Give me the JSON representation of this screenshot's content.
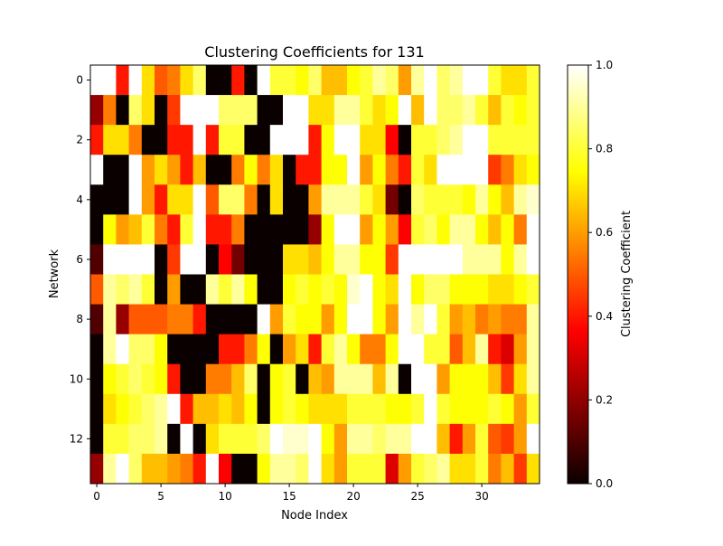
{
  "chart_data": {
    "type": "heatmap",
    "title": "Clustering Coefficients for 131",
    "xlabel": "Node Index",
    "ylabel": "Network",
    "colorbar_label": "Clustering Coefficient",
    "colormap": "hot",
    "vmin": 0.0,
    "vmax": 1.0,
    "x_ticks": [
      0,
      5,
      10,
      15,
      20,
      25,
      30
    ],
    "y_ticks": [
      0,
      2,
      4,
      6,
      8,
      10,
      12
    ],
    "colorbar_ticks": [
      "0.0",
      "0.2",
      "0.4",
      "0.6",
      "0.8",
      "1.0"
    ],
    "n_rows": 14,
    "n_cols": 35,
    "values": [
      [
        1.0,
        1.0,
        0.4,
        1.0,
        0.7,
        0.5,
        0.55,
        0.7,
        0.85,
        0.0,
        0.0,
        0.4,
        0.0,
        1.0,
        0.8,
        0.8,
        0.75,
        0.85,
        0.65,
        0.65,
        0.75,
        0.8,
        0.9,
        0.85,
        0.6,
        0.9,
        1.0,
        0.85,
        0.9,
        1.0,
        1.0,
        0.8,
        0.7,
        0.7,
        0.8
      ],
      [
        0.2,
        0.55,
        0.0,
        0.85,
        0.7,
        0.0,
        0.45,
        1.0,
        1.0,
        1.0,
        0.85,
        0.85,
        0.85,
        0.0,
        0.0,
        1.0,
        1.0,
        0.7,
        0.7,
        0.9,
        0.9,
        0.8,
        0.7,
        0.75,
        1.0,
        0.65,
        1.0,
        0.85,
        0.85,
        0.9,
        0.8,
        0.65,
        0.8,
        0.75,
        0.8
      ],
      [
        0.4,
        0.7,
        0.7,
        0.55,
        0.0,
        0.0,
        0.4,
        0.4,
        1.0,
        0.4,
        0.8,
        0.8,
        0.0,
        0.0,
        1.0,
        1.0,
        1.0,
        0.4,
        0.75,
        1.0,
        1.0,
        0.7,
        0.7,
        0.35,
        0.0,
        0.8,
        0.8,
        0.85,
        0.9,
        1.0,
        1.0,
        0.8,
        0.8,
        0.8,
        0.8
      ],
      [
        1.0,
        0.0,
        0.0,
        1.0,
        0.6,
        0.7,
        0.6,
        0.4,
        0.65,
        0.0,
        0.0,
        0.55,
        0.75,
        0.55,
        0.7,
        0.0,
        0.4,
        0.4,
        0.75,
        0.75,
        1.0,
        0.6,
        0.75,
        0.55,
        0.4,
        0.8,
        0.7,
        1.0,
        1.0,
        1.0,
        1.0,
        0.45,
        0.55,
        0.7,
        0.75
      ],
      [
        0.0,
        0.0,
        0.0,
        1.0,
        0.6,
        0.4,
        0.7,
        0.7,
        1.0,
        0.5,
        0.85,
        0.85,
        0.55,
        0.0,
        0.7,
        0.0,
        0.0,
        0.6,
        0.9,
        0.9,
        0.9,
        0.8,
        0.7,
        0.15,
        0.0,
        0.85,
        0.8,
        0.8,
        0.8,
        0.75,
        0.9,
        0.75,
        0.65,
        0.9,
        0.95
      ],
      [
        0.0,
        0.75,
        0.6,
        0.65,
        0.8,
        0.55,
        0.4,
        0.8,
        1.0,
        0.4,
        0.4,
        0.55,
        0.0,
        0.0,
        0.0,
        0.0,
        0.0,
        0.2,
        0.75,
        1.0,
        1.0,
        0.6,
        0.75,
        0.6,
        0.35,
        0.8,
        0.85,
        0.75,
        0.9,
        0.9,
        0.75,
        0.65,
        0.75,
        0.55,
        1.0
      ],
      [
        0.1,
        1.0,
        1.0,
        1.0,
        1.0,
        0.0,
        0.45,
        1.0,
        1.0,
        0.0,
        0.35,
        0.15,
        0.0,
        0.0,
        0.0,
        0.7,
        0.7,
        0.65,
        0.75,
        0.9,
        0.9,
        0.75,
        0.75,
        0.45,
        1.0,
        1.0,
        1.0,
        1.0,
        1.0,
        0.9,
        0.9,
        0.9,
        0.75,
        0.9,
        1.0
      ],
      [
        0.5,
        0.9,
        0.85,
        0.9,
        0.8,
        0.0,
        0.6,
        0.0,
        0.0,
        0.9,
        0.8,
        0.9,
        0.75,
        0.0,
        0.0,
        0.75,
        0.8,
        0.75,
        0.8,
        0.75,
        0.95,
        1.0,
        0.75,
        0.7,
        1.0,
        0.75,
        0.85,
        0.85,
        0.75,
        0.75,
        0.75,
        0.7,
        0.7,
        0.75,
        0.8
      ],
      [
        0.1,
        0.9,
        0.2,
        0.5,
        0.5,
        0.5,
        0.55,
        0.55,
        0.4,
        0.0,
        0.0,
        0.0,
        0.0,
        1.0,
        0.6,
        0.8,
        0.75,
        0.75,
        0.6,
        0.75,
        1.0,
        1.0,
        0.75,
        0.6,
        1.0,
        0.9,
        1.0,
        0.8,
        0.6,
        0.65,
        0.55,
        0.6,
        0.55,
        0.55,
        0.9
      ],
      [
        0.0,
        0.9,
        1.0,
        0.85,
        0.85,
        0.75,
        0.0,
        0.0,
        0.0,
        0.0,
        0.4,
        0.4,
        0.55,
        0.75,
        0.0,
        0.6,
        0.7,
        0.4,
        0.8,
        0.9,
        0.75,
        0.55,
        0.55,
        0.75,
        1.0,
        1.0,
        0.8,
        0.8,
        0.5,
        0.65,
        0.9,
        0.4,
        0.3,
        0.6,
        0.9
      ],
      [
        0.0,
        0.75,
        0.8,
        0.85,
        0.8,
        0.75,
        0.4,
        0.0,
        0.0,
        0.55,
        0.55,
        0.65,
        0.85,
        0.0,
        0.75,
        0.8,
        0.0,
        0.65,
        0.6,
        0.9,
        0.9,
        0.9,
        0.65,
        0.9,
        0.0,
        1.0,
        1.0,
        0.6,
        0.75,
        0.75,
        0.75,
        0.65,
        0.45,
        0.7,
        0.9
      ],
      [
        0.0,
        0.7,
        0.75,
        0.8,
        0.85,
        0.9,
        1.0,
        0.4,
        0.65,
        0.65,
        0.7,
        0.65,
        0.75,
        0.0,
        0.75,
        0.8,
        0.75,
        0.7,
        0.7,
        0.7,
        0.8,
        0.8,
        0.8,
        0.75,
        0.75,
        0.8,
        1.0,
        0.8,
        0.75,
        0.75,
        0.75,
        0.8,
        0.75,
        0.6,
        0.8
      ],
      [
        0.0,
        0.8,
        0.8,
        0.85,
        0.85,
        0.9,
        0.0,
        1.0,
        0.0,
        0.7,
        0.8,
        0.8,
        0.8,
        0.85,
        1.0,
        0.95,
        0.95,
        1.0,
        0.75,
        0.6,
        0.9,
        0.9,
        0.85,
        0.9,
        0.9,
        1.0,
        1.0,
        0.65,
        0.4,
        0.6,
        0.8,
        0.5,
        0.45,
        0.6,
        1.0
      ],
      [
        0.2,
        0.9,
        1.0,
        0.85,
        0.65,
        0.65,
        0.6,
        0.55,
        0.4,
        1.0,
        0.35,
        0.0,
        0.0,
        0.75,
        0.9,
        0.9,
        0.85,
        1.0,
        0.7,
        0.6,
        0.8,
        0.8,
        0.8,
        0.3,
        0.6,
        0.8,
        0.85,
        0.9,
        0.7,
        0.7,
        0.8,
        0.55,
        0.65,
        0.45,
        0.7
      ]
    ]
  }
}
